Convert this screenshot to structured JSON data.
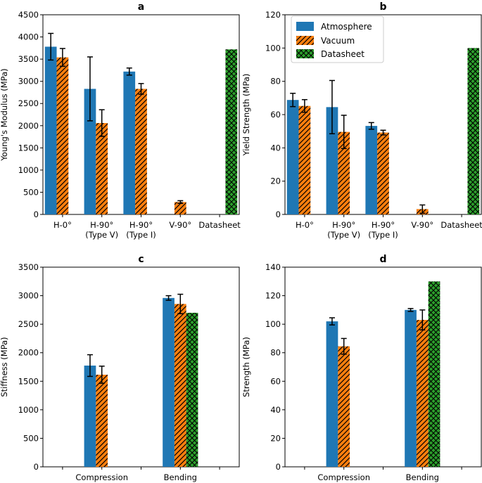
{
  "colors": {
    "atmosphere": "#1f77b4",
    "vacuum": "#ff7f0e",
    "datasheet": "#2ca02c",
    "error": "#000000"
  },
  "legend": {
    "labels": [
      "Atmosphere",
      "Vacuum",
      "Datasheet"
    ],
    "placement": "top-left (panel b)"
  },
  "chart_data": [
    {
      "panel": "a",
      "type": "bar",
      "title": "a",
      "xlabel": "",
      "ylabel": "Young's Modulus (MPa)",
      "ylim": [
        0,
        4500
      ],
      "yticks": [
        0,
        500,
        1000,
        1500,
        2000,
        2500,
        3000,
        3500,
        4000,
        4500
      ],
      "categories": [
        [
          "H-0°"
        ],
        [
          "H-90°",
          "(Type V)"
        ],
        [
          "H-90°",
          "(Type I)"
        ],
        [
          "V-90°"
        ],
        [
          "Datasheet"
        ]
      ],
      "series": [
        {
          "name": "Atmosphere",
          "values": [
            3780,
            2830,
            3220,
            null,
            null
          ],
          "errors": [
            300,
            720,
            80,
            null,
            null
          ]
        },
        {
          "name": "Vacuum",
          "values": [
            3540,
            2060,
            2830,
            280,
            null
          ],
          "errors": [
            200,
            300,
            120,
            30,
            null
          ]
        },
        {
          "name": "Datasheet",
          "values": [
            null,
            null,
            null,
            null,
            3720
          ],
          "errors": [
            null,
            null,
            null,
            null,
            null
          ]
        }
      ]
    },
    {
      "panel": "b",
      "type": "bar",
      "title": "b",
      "xlabel": "",
      "ylabel": "Yield Strength (MPa)",
      "ylim": [
        0,
        120
      ],
      "yticks": [
        0,
        20,
        40,
        60,
        80,
        100,
        120
      ],
      "categories": [
        [
          "H-0°"
        ],
        [
          "H-90°",
          "(Type V)"
        ],
        [
          "H-90°",
          "(Type I)"
        ],
        [
          "V-90°"
        ],
        [
          "Datasheet"
        ]
      ],
      "series": [
        {
          "name": "Atmosphere",
          "values": [
            68.8,
            64.5,
            53.2,
            0,
            null
          ],
          "errors": [
            4.0,
            16.0,
            2.0,
            null,
            null
          ]
        },
        {
          "name": "Vacuum",
          "values": [
            65.2,
            49.6,
            49.2,
            3.2,
            null
          ],
          "errors": [
            3.8,
            10.0,
            1.4,
            2.5,
            null
          ]
        },
        {
          "name": "Datasheet",
          "values": [
            null,
            null,
            null,
            null,
            100
          ],
          "errors": [
            null,
            null,
            null,
            null,
            null
          ]
        }
      ]
    },
    {
      "panel": "c",
      "type": "bar",
      "title": "c",
      "xlabel": "",
      "ylabel": "Stiffness (MPa)",
      "ylim": [
        0,
        3500
      ],
      "yticks": [
        0,
        500,
        1000,
        1500,
        2000,
        2500,
        3000,
        3500
      ],
      "categories": [
        [
          ""
        ],
        [
          "Compression"
        ],
        [
          ""
        ],
        [
          "Bending"
        ],
        [
          ""
        ]
      ],
      "series": [
        {
          "name": "Atmosphere",
          "values": [
            0,
            1775,
            0,
            2960,
            0
          ],
          "errors": [
            null,
            190,
            null,
            40,
            null
          ]
        },
        {
          "name": "Vacuum",
          "values": [
            0,
            1615,
            0,
            2855,
            0
          ],
          "errors": [
            null,
            150,
            null,
            170,
            null
          ]
        },
        {
          "name": "Datasheet",
          "values": [
            null,
            0,
            null,
            2700,
            0
          ],
          "errors": [
            null,
            null,
            null,
            null,
            null
          ]
        }
      ]
    },
    {
      "panel": "d",
      "type": "bar",
      "title": "d",
      "xlabel": "",
      "ylabel": "Strength (MPa)",
      "ylim": [
        0,
        140
      ],
      "yticks": [
        0,
        20,
        40,
        60,
        80,
        100,
        120,
        140
      ],
      "categories": [
        [
          ""
        ],
        [
          "Compression"
        ],
        [
          ""
        ],
        [
          "Bending"
        ],
        [
          ""
        ]
      ],
      "series": [
        {
          "name": "Atmosphere",
          "values": [
            0,
            102,
            0,
            110,
            0
          ],
          "errors": [
            null,
            2.5,
            null,
            1.0,
            null
          ]
        },
        {
          "name": "Vacuum",
          "values": [
            0,
            84.5,
            0,
            103,
            0
          ],
          "errors": [
            null,
            5.5,
            null,
            7.0,
            null
          ]
        },
        {
          "name": "Datasheet",
          "values": [
            null,
            0,
            null,
            130,
            0
          ],
          "errors": [
            null,
            null,
            null,
            null,
            null
          ]
        }
      ]
    }
  ]
}
